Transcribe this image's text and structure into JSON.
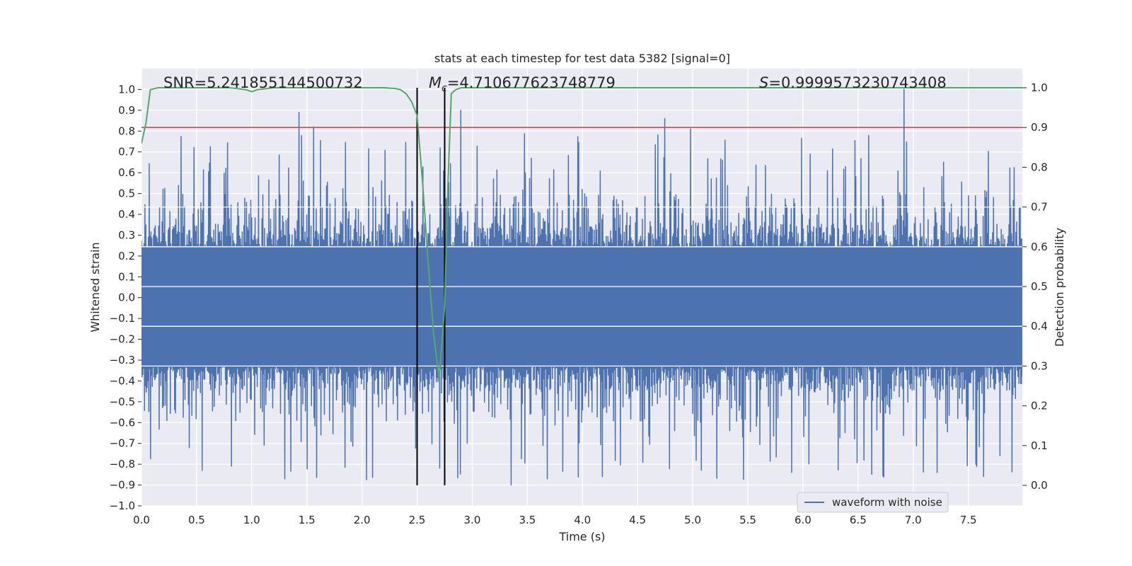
{
  "chart_data": {
    "type": "line",
    "title": "stats at each timestep for test data 5382 [signal=0]",
    "xlabel": "Time (s)",
    "ylabel_left": "Whitened strain",
    "ylabel_right": "Detection probability",
    "xlim": [
      0.0,
      7.99
    ],
    "ylim_left": [
      -1.0,
      1.1
    ],
    "ylim_right": [
      0.0,
      1.0
    ],
    "x_ticks": [
      "0.0",
      "0.5",
      "1.0",
      "1.5",
      "2.0",
      "2.5",
      "3.0",
      "3.5",
      "4.0",
      "4.5",
      "5.0",
      "5.5",
      "6.0",
      "6.5",
      "7.0",
      "7.5"
    ],
    "x_tick_values": [
      0.0,
      0.5,
      1.0,
      1.5,
      2.0,
      2.5,
      3.0,
      3.5,
      4.0,
      4.5,
      5.0,
      5.5,
      6.0,
      6.5,
      7.0,
      7.5
    ],
    "y_left_ticks": [
      "−1.0",
      "−0.9",
      "−0.8",
      "−0.7",
      "−0.6",
      "−0.5",
      "−0.4",
      "−0.3",
      "−0.2",
      "−0.1",
      "0.0",
      "0.1",
      "0.2",
      "0.3",
      "0.4",
      "0.5",
      "0.6",
      "0.7",
      "0.8",
      "0.9",
      "1.0"
    ],
    "y_left_tick_values": [
      -1.0,
      -0.9,
      -0.8,
      -0.7,
      -0.6,
      -0.5,
      -0.4,
      -0.3,
      -0.2,
      -0.1,
      0.0,
      0.1,
      0.2,
      0.3,
      0.4,
      0.5,
      0.6,
      0.7,
      0.8,
      0.9,
      1.0
    ],
    "y_right_ticks": [
      "0.0",
      "0.1",
      "0.2",
      "0.3",
      "0.4",
      "0.5",
      "0.6",
      "0.7",
      "0.8",
      "0.9",
      "1.0"
    ],
    "y_right_tick_values": [
      0.0,
      0.1,
      0.2,
      0.3,
      0.4,
      0.5,
      0.6,
      0.7,
      0.8,
      0.9,
      1.0
    ],
    "annotations": {
      "snr": "SNR=5.241855144500732",
      "mc_symbol": "M",
      "mc_sub": "c",
      "mc_value": "=4.710677623748779",
      "s_symbol": "S",
      "s_value": "=0.9999573230743408"
    },
    "legend": {
      "label": "waveform with noise",
      "position": "lower right"
    },
    "waveform": {
      "name": "waveform with noise",
      "color": "#4c72b0",
      "x_range": [
        0.0,
        7.99
      ],
      "sample_count": 2048,
      "core_envelope": [
        -0.33,
        0.24
      ],
      "peaks": [
        {
          "x": 0.55,
          "y": -0.83
        },
        {
          "x": 1.43,
          "y": 0.89
        },
        {
          "x": 1.56,
          "y": 0.82
        },
        {
          "x": 2.9,
          "y": 0.9
        },
        {
          "x": 3.35,
          "y": -0.9
        },
        {
          "x": 3.68,
          "y": -0.87
        },
        {
          "x": 4.18,
          "y": -0.86
        },
        {
          "x": 4.75,
          "y": 0.86
        },
        {
          "x": 4.98,
          "y": 0.81
        },
        {
          "x": 6.92,
          "y": 1.0
        },
        {
          "x": 7.22,
          "y": -0.84
        }
      ]
    },
    "detection_probability": {
      "color": "#55a868",
      "x": [
        0.0,
        0.04,
        0.08,
        0.15,
        0.3,
        0.5,
        0.8,
        0.95,
        1.0,
        1.05,
        1.2,
        1.5,
        2.0,
        2.2,
        2.3,
        2.35,
        2.4,
        2.45,
        2.5,
        2.55,
        2.6,
        2.65,
        2.7,
        2.75,
        2.78,
        2.81,
        2.85,
        2.9,
        3.0,
        4.0,
        5.0,
        6.0,
        7.0,
        7.99
      ],
      "y": [
        0.86,
        0.91,
        0.995,
        1.0,
        1.0,
        1.0,
        1.0,
        0.995,
        0.99,
        0.995,
        1.0,
        1.0,
        1.0,
        1.0,
        0.998,
        0.995,
        0.985,
        0.965,
        0.93,
        0.76,
        0.56,
        0.38,
        0.27,
        0.45,
        0.76,
        0.985,
        0.995,
        1.0,
        1.0,
        1.0,
        1.0,
        1.0,
        1.0,
        1.0
      ]
    },
    "threshold": {
      "value": 0.9,
      "axis": "right",
      "color": "#c44e52"
    },
    "vlines": [
      {
        "x": 2.5,
        "color": "#000000",
        "y_range_right": [
          0.0,
          1.0
        ]
      },
      {
        "x": 2.75,
        "color": "#000000",
        "y_range_right": [
          0.0,
          1.0
        ]
      }
    ]
  }
}
